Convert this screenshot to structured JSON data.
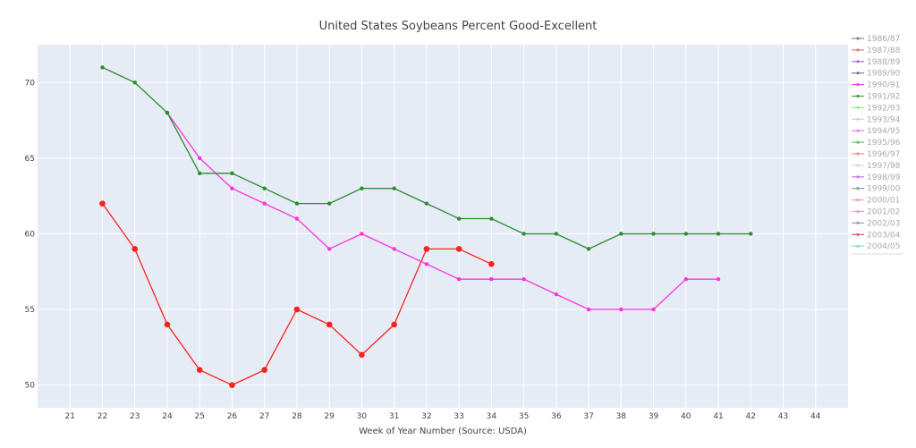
{
  "chart_data": {
    "type": "line",
    "title": "United States Soybeans Percent Good-Excellent",
    "xlabel": "Week of Year Number     (Source: USDA)",
    "ylabel": "",
    "xlim": [
      20,
      45
    ],
    "ylim": [
      48.5,
      72.5
    ],
    "x_ticks": [
      21,
      22,
      23,
      24,
      25,
      26,
      27,
      28,
      29,
      30,
      31,
      32,
      33,
      34,
      35,
      36,
      37,
      38,
      39,
      40,
      41,
      42,
      43,
      44
    ],
    "y_ticks": [
      50,
      55,
      60,
      65,
      70
    ],
    "grid": true,
    "legend_position": "right",
    "legend_entries": [
      {
        "name": "1986/87",
        "color": "#8c8c8c"
      },
      {
        "name": "1987/88",
        "color": "#e07a7a"
      },
      {
        "name": "1988/89",
        "color": "#a86ed3"
      },
      {
        "name": "1989/90",
        "color": "#6b7f96"
      },
      {
        "name": "1990/91",
        "color": "#e64ae6"
      },
      {
        "name": "1991/92",
        "color": "#4a9a4a"
      },
      {
        "name": "1992/93",
        "color": "#9ee59e"
      },
      {
        "name": "1993/94",
        "color": "#cfcfcf"
      },
      {
        "name": "1994/95",
        "color": "#f07af0"
      },
      {
        "name": "1995/96",
        "color": "#6fbf6f"
      },
      {
        "name": "1996/97",
        "color": "#e89090"
      },
      {
        "name": "1997/98",
        "color": "#d9d9d9"
      },
      {
        "name": "1998/99",
        "color": "#c77ae0"
      },
      {
        "name": "1999/00",
        "color": "#7fa0a0"
      },
      {
        "name": "2000/01",
        "color": "#f0a0a0"
      },
      {
        "name": "2001/02",
        "color": "#e0a0e0"
      },
      {
        "name": "2002/03",
        "color": "#a0a0a0"
      },
      {
        "name": "2003/04",
        "color": "#e05080"
      },
      {
        "name": "2004/05",
        "color": "#80e0c0"
      }
    ],
    "series": [
      {
        "color": "#ff2020",
        "marker_size": 3.3,
        "x": [
          22,
          23,
          24,
          25,
          26,
          27,
          28,
          29,
          30,
          31,
          32,
          33,
          34
        ],
        "values": [
          62,
          59,
          54,
          51,
          50,
          51,
          55,
          54,
          52,
          54,
          59,
          59,
          58
        ]
      },
      {
        "color": "#ff33dd",
        "marker_size": 2.2,
        "x": [
          24,
          25,
          26,
          27,
          28,
          29,
          30,
          31,
          32,
          33,
          34,
          35,
          36,
          37,
          38,
          39,
          40,
          41
        ],
        "values": [
          68,
          65,
          63,
          62,
          61,
          59,
          60,
          59,
          58,
          57,
          57,
          57,
          56,
          55,
          55,
          55,
          57,
          57
        ]
      },
      {
        "color": "#2e8b2e",
        "marker_size": 2.2,
        "x": [
          22,
          23,
          24,
          25,
          26,
          27,
          28,
          29,
          30,
          31,
          32,
          33,
          34,
          35,
          36,
          37,
          38,
          39,
          40,
          41,
          42
        ],
        "values": [
          71,
          70,
          68,
          64,
          64,
          63,
          62,
          62,
          63,
          63,
          62,
          61,
          61,
          60,
          60,
          59,
          60,
          60,
          60,
          60,
          60
        ]
      }
    ]
  }
}
